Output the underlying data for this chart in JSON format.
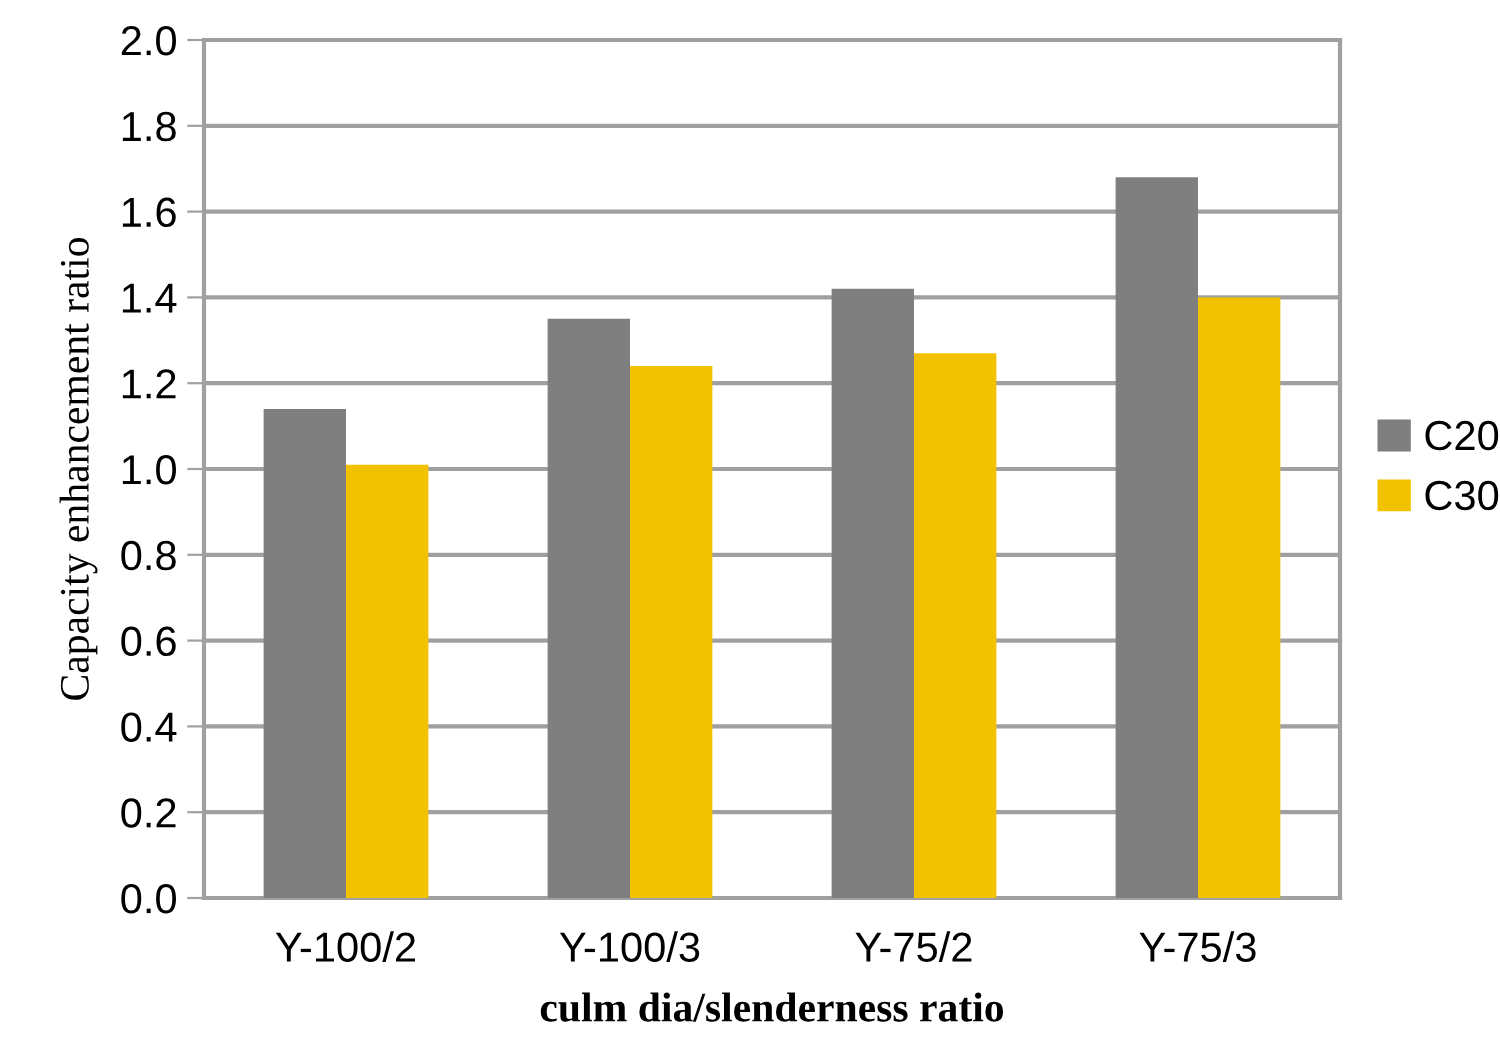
{
  "chart_data": {
    "type": "bar",
    "xlabel": "culm dia/slenderness ratio",
    "ylabel": "Capacity enhancement ratio",
    "categories": [
      "Y-100/2",
      "Y-100/3",
      "Y-75/2",
      "Y-75/3"
    ],
    "series": [
      {
        "name": "C20",
        "color": "#7f7f7f",
        "values": [
          1.14,
          1.35,
          1.42,
          1.68
        ]
      },
      {
        "name": "C30",
        "color": "#f2c200",
        "values": [
          1.01,
          1.24,
          1.27,
          1.4
        ]
      }
    ],
    "ylim": [
      0,
      2.0
    ],
    "yticks": [
      {
        "value": 0,
        "label": "0.0"
      },
      {
        "value": 0.2,
        "label": "0.2"
      },
      {
        "value": 0.4,
        "label": "0.4"
      },
      {
        "value": 0.6,
        "label": "0.6"
      },
      {
        "value": 0.8,
        "label": "0.8"
      },
      {
        "value": 1.0,
        "label": "1.0"
      },
      {
        "value": 1.2,
        "label": "1.2"
      },
      {
        "value": 1.4,
        "label": "1.4"
      },
      {
        "value": 1.6,
        "label": "1.6"
      },
      {
        "value": 1.8,
        "label": "1.8"
      },
      {
        "value": 2.0,
        "label": "2.0"
      }
    ],
    "grid": "y",
    "legend": "right"
  }
}
